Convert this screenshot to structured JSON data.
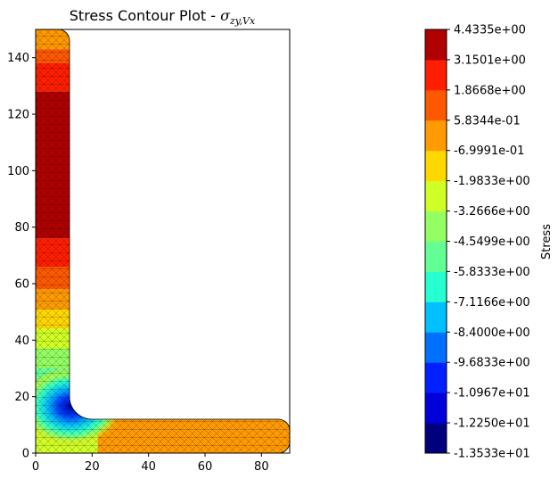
{
  "chart_data": {
    "type": "heatmap",
    "title": "Stress Contour Plot - ",
    "title_math": {
      "symbol": "σ",
      "subscript": "zy,Vx"
    },
    "xlim": [
      0,
      90
    ],
    "ylim": [
      0,
      150
    ],
    "x_ticks": [
      0,
      20,
      40,
      60,
      80
    ],
    "y_ticks": [
      0,
      20,
      40,
      60,
      80,
      100,
      120,
      140
    ],
    "grid": false,
    "colorbar": {
      "label": "Stress",
      "ticks": [
        "-1.3533e+01",
        "-1.2250e+01",
        "-1.0967e+01",
        "-9.6833e+00",
        "-8.4000e+00",
        "-7.1166e+00",
        "-5.8333e+00",
        "-4.5499e+00",
        "-3.2666e+00",
        "-1.9833e+00",
        "-6.9991e-01",
        "5.8344e-01",
        "1.8668e+00",
        "3.1501e+00",
        "4.4335e+00"
      ],
      "colors": [
        "#00007f",
        "#0000da",
        "#0020ff",
        "#0070ff",
        "#00c0ff",
        "#26ffd0",
        "#62ff94",
        "#94ff62",
        "#d0ff26",
        "#ffd800",
        "#ff9a00",
        "#ff5900",
        "#ff1e00",
        "#b00000"
      ]
    },
    "section": {
      "shape": "angle",
      "vertical_leg": {
        "x": [
          0,
          12
        ],
        "y": [
          0,
          150
        ]
      },
      "horizontal_leg": {
        "x": [
          0,
          90
        ],
        "y": [
          0,
          12
        ]
      },
      "root_radius": 8,
      "toe_radius": 4
    },
    "contour_bands": [
      {
        "leg": "vertical",
        "y_range": [
          143,
          150
        ],
        "level": 10
      },
      {
        "leg": "vertical",
        "y_range": [
          138,
          143
        ],
        "level": 11
      },
      {
        "leg": "vertical",
        "y_range": [
          128,
          138
        ],
        "level": 12
      },
      {
        "leg": "vertical",
        "y_range": [
          76,
          128
        ],
        "level": 13
      },
      {
        "leg": "vertical",
        "y_range": [
          66,
          76
        ],
        "level": 12
      },
      {
        "leg": "vertical",
        "y_range": [
          58,
          66
        ],
        "level": 11
      },
      {
        "leg": "vertical",
        "y_range": [
          51,
          58
        ],
        "level": 10
      },
      {
        "leg": "vertical",
        "y_range": [
          44,
          51
        ],
        "level": 9
      },
      {
        "leg": "vertical",
        "y_range": [
          37,
          44
        ],
        "level": 8
      },
      {
        "leg": "vertical",
        "y_range": [
          30,
          37
        ],
        "level": 7
      },
      {
        "leg": "vertical",
        "y_range": [
          24,
          30
        ],
        "level": 6
      },
      {
        "leg": "horizontal",
        "x_range": [
          22,
          90
        ],
        "level": 10
      }
    ]
  }
}
